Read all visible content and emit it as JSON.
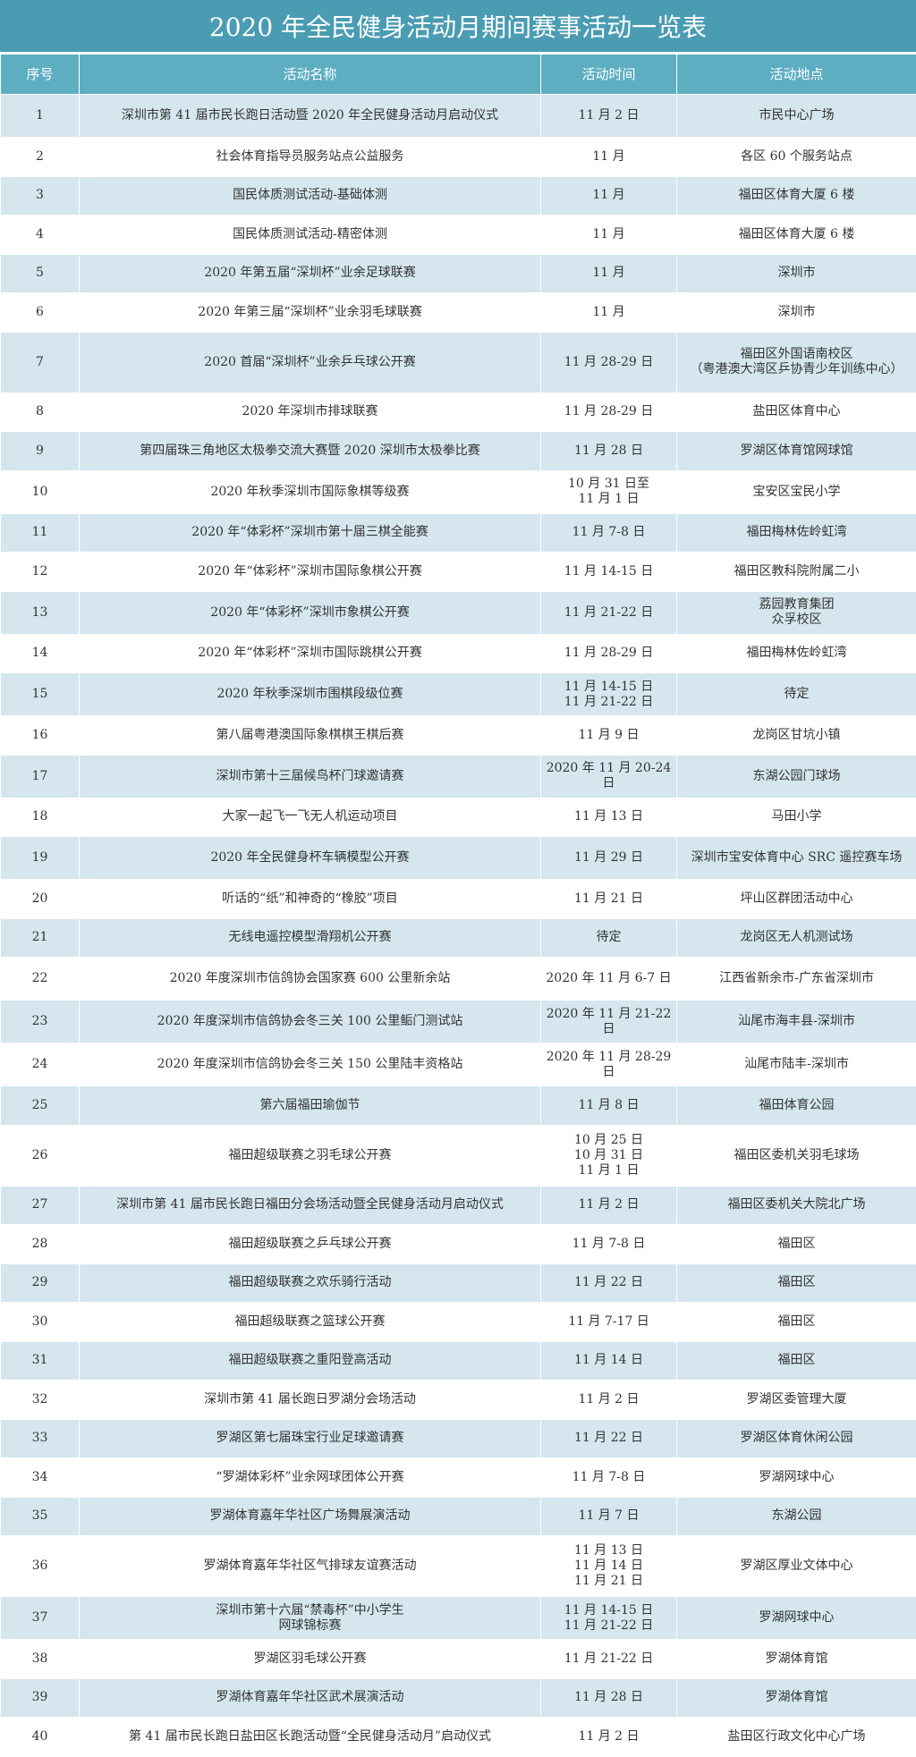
{
  "table": {
    "title": "2020 年全民健身活动月期间赛事活动一览表",
    "header": [
      "序号",
      "活动名称",
      "活动时间",
      "活动地点"
    ],
    "rows": [
      [
        "1",
        "深圳市第 41 届市民长跑日活动暨 2020 年全民健身活动月启动仪式",
        "11 月 2 日",
        "市民中心广场"
      ],
      [
        "2",
        "社会体育指导员服务站点公益服务",
        "11 月",
        "各区 60 个服务站点"
      ],
      [
        "3",
        "国民体质测试活动-基础体测",
        "11 月",
        "福田区体育大厦 6 楼"
      ],
      [
        "4",
        "国民体质测试活动-精密体测",
        "11 月",
        "福田区体育大厦 6 楼"
      ],
      [
        "5",
        "2020 年第五届“深圳杯”业余足球联赛",
        "11 月",
        "深圳市"
      ],
      [
        "6",
        "2020 年第三届“深圳杯”业余羽毛球联赛",
        "11 月",
        "深圳市"
      ],
      [
        "7",
        "2020 首届“深圳杯”业余乒乓球公开赛",
        "11 月 28-29 日",
        "福田区外国语南校区\n（粤港澳大湾区乒协青少年训练中心）"
      ],
      [
        "8",
        "2020 年深圳市排球联赛",
        "11 月 28-29 日",
        "盐田区体育中心"
      ],
      [
        "9",
        "第四届珠三角地区太极拳交流大赛暨 2020 深圳市太极拳比赛",
        "11 月 28 日",
        "罗湖区体育馆网球馆"
      ],
      [
        "10",
        "2020 年秋季深圳市国际象棋等级赛",
        "10 月 31 日至\n11 月 1 日",
        "宝安区宝民小学"
      ],
      [
        "11",
        "2020 年“体彩杯”深圳市第十届三棋全能赛",
        "11 月 7-8 日",
        "福田梅林佐岭虹湾"
      ],
      [
        "12",
        "2020 年“体彩杯”深圳市国际象棋公开赛",
        "11 月 14-15 日",
        "福田区教科院附属二小"
      ],
      [
        "13",
        "2020 年“体彩杯”深圳市象棋公开赛",
        "11 月 21-22 日",
        "荔园教育集团\n众孚校区"
      ],
      [
        "14",
        "2020 年“体彩杯”深圳市国际跳棋公开赛",
        "11 月 28-29 日",
        "福田梅林佐岭虹湾"
      ],
      [
        "15",
        "2020 年秋季深圳市围棋段级位赛",
        "11 月 14-15 日\n11 月 21-22 日",
        "待定"
      ],
      [
        "16",
        "第八届粤港澳国际象棋棋王棋后赛",
        "11 月 9 日",
        "龙岗区甘坑小镇"
      ],
      [
        "17",
        "深圳市第十三届候鸟杯门球邀请赛",
        "2020 年 11 月 20-24 日",
        "东湖公园门球场"
      ],
      [
        "18",
        "大家一起飞一飞无人机运动项目",
        "11 月 13 日",
        "马田小学"
      ],
      [
        "19",
        "2020 年全民健身杯车辆模型公开赛",
        "11 月 29 日",
        "深圳市宝安体育中心 SRC 遥控赛车场"
      ],
      [
        "20",
        "听话的“纸”和神奇的“橡胶”项目",
        "11 月 21 日",
        "坪山区群团活动中心"
      ],
      [
        "21",
        "无线电遥控模型滑翔机公开赛",
        "待定",
        "龙岗区无人机测试场"
      ],
      [
        "22",
        "2020 年度深圳市信鸽协会国家赛 600 公里新余站",
        "2020 年 11 月 6-7 日",
        "江西省新余市-广东省深圳市"
      ],
      [
        "23",
        "2020 年度深圳市信鸽协会冬三关 100 公里鲘门测试站",
        "2020 年 11 月 21-22 日",
        "汕尾市海丰县-深圳市"
      ],
      [
        "24",
        "2020 年度深圳市信鸽协会冬三关 150 公里陆丰资格站",
        "2020 年 11 月 28-29 日",
        "汕尾市陆丰-深圳市"
      ],
      [
        "25",
        "第六届福田瑜伽节",
        "11 月 8 日",
        "福田体育公园"
      ],
      [
        "26",
        "福田超级联赛之羽毛球公开赛",
        "10 月 25 日\n10 月 31 日\n11 月 1 日",
        "福田区委机关羽毛球场"
      ],
      [
        "27",
        "深圳市第 41 届市民长跑日福田分会场活动暨全民健身活动月启动仪式",
        "11 月 2 日",
        "福田区委机关大院北广场"
      ],
      [
        "28",
        "福田超级联赛之乒乓球公开赛",
        "11 月 7-8 日",
        "福田区"
      ],
      [
        "29",
        "福田超级联赛之欢乐骑行活动",
        "11 月 22 日",
        "福田区"
      ],
      [
        "30",
        "福田超级联赛之篮球公开赛",
        "11 月 7-17 日",
        "福田区"
      ],
      [
        "31",
        "福田超级联赛之重阳登高活动",
        "11 月 14 日",
        "福田区"
      ],
      [
        "32",
        "深圳市第 41 届长跑日罗湖分会场活动",
        "11 月 2 日",
        "罗湖区委管理大厦"
      ],
      [
        "33",
        "罗湖区第七届珠宝行业足球邀请赛",
        "11 月 22 日",
        "罗湖区体育休闲公园"
      ],
      [
        "34",
        "“罗湖体彩杯”业余网球团体公开赛",
        "11 月 7-8 日",
        "罗湖网球中心"
      ],
      [
        "35",
        "罗湖体育嘉年华社区广场舞展演活动",
        "11 月 7 日",
        "东湖公园"
      ],
      [
        "36",
        "罗湖体育嘉年华社区气排球友谊赛活动",
        "11 月 13 日\n11 月 14 日\n11 月 21 日",
        "罗湖区厚业文体中心"
      ],
      [
        "37",
        "深圳市第十六届“禁毒杯”中小学生\n网球锦标赛",
        "11 月 14-15 日\n11 月 21-22 日",
        "罗湖网球中心"
      ],
      [
        "38",
        "罗湖区羽毛球公开赛",
        "11 月 21-22 日",
        "罗湖体育馆"
      ],
      [
        "39",
        "罗湖体育嘉年华社区武术展演活动",
        "11 月 28 日",
        "罗湖体育馆"
      ],
      [
        "40",
        "第 41 届市民长跑日盐田区长跑活动暨“全民健身活动月”启动仪式",
        "11 月 2 日",
        "盐田区行政文化中心广场"
      ]
    ]
  }
}
